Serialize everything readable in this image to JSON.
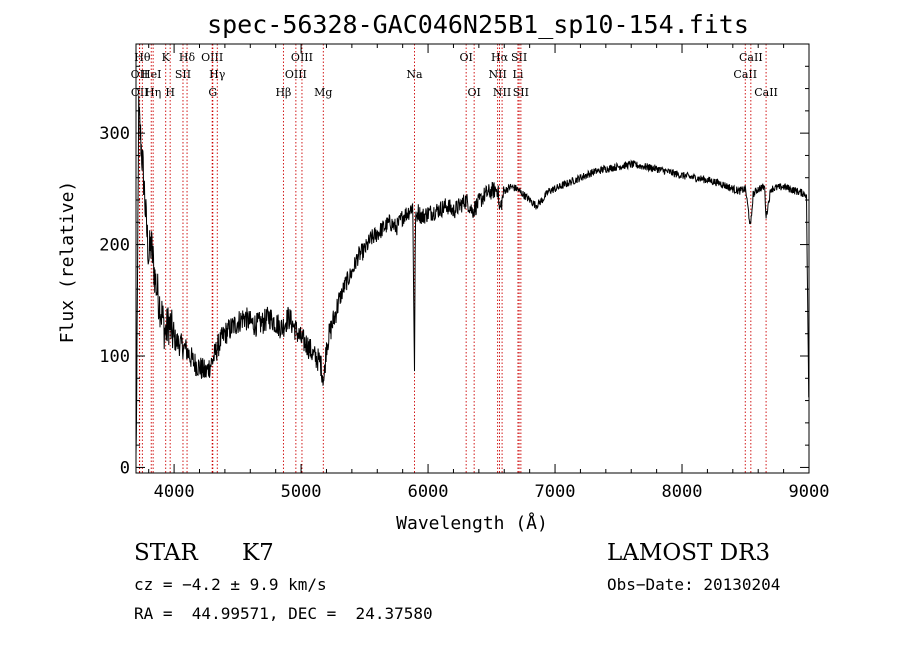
{
  "chart_data": {
    "type": "line",
    "title": "spec-56328-GAC046N25B1_sp10-154.fits",
    "xlabel": "Wavelength (Å)",
    "ylabel": "Flux (relative)",
    "xlim": [
      3700,
      9000
    ],
    "ylim": [
      -5,
      380
    ],
    "xticks": [
      4000,
      5000,
      6000,
      7000,
      8000,
      9000
    ],
    "yticks": [
      0,
      100,
      200,
      300
    ],
    "grid": false,
    "line_color": "#000000",
    "marker_color": "#cc0000",
    "series": [
      {
        "x": [
          3700,
          3710,
          3720,
          3740,
          3760,
          3780,
          3800,
          3820,
          3850,
          3880,
          3900,
          3930,
          3960,
          4000,
          4050,
          4100,
          4150,
          4200,
          4250,
          4300,
          4350,
          4400,
          4450,
          4500,
          4550,
          4600,
          4650,
          4700,
          4750,
          4800,
          4850,
          4900,
          4950,
          5000,
          5050,
          5100,
          5150,
          5180,
          5200,
          5250,
          5300,
          5350,
          5400,
          5450,
          5500,
          5550,
          5600,
          5650,
          5700,
          5750,
          5800,
          5850,
          5880,
          5893,
          5900,
          5920,
          5950,
          6000,
          6050,
          6100,
          6150,
          6200,
          6250,
          6300,
          6350,
          6400,
          6450,
          6500,
          6550,
          6563,
          6600,
          6650,
          6700,
          6750,
          6800,
          6850,
          6900,
          6950,
          7000,
          7100,
          7200,
          7300,
          7400,
          7500,
          7600,
          7700,
          7800,
          7900,
          8000,
          8100,
          8200,
          8300,
          8400,
          8450,
          8500,
          8540,
          8560,
          8600,
          8650,
          8662,
          8700,
          8800,
          8900,
          8980,
          9000
        ],
        "y": [
          5,
          120,
          320,
          290,
          260,
          220,
          190,
          200,
          170,
          150,
          140,
          120,
          130,
          115,
          110,
          105,
          95,
          90,
          85,
          95,
          110,
          120,
          125,
          130,
          135,
          130,
          128,
          130,
          135,
          130,
          125,
          135,
          125,
          115,
          110,
          100,
          95,
          78,
          110,
          130,
          150,
          165,
          175,
          190,
          195,
          205,
          210,
          215,
          220,
          215,
          225,
          230,
          235,
          85,
          220,
          230,
          225,
          228,
          230,
          232,
          235,
          230,
          235,
          240,
          230,
          238,
          245,
          248,
          250,
          230,
          248,
          252,
          250,
          245,
          240,
          235,
          240,
          248,
          250,
          255,
          260,
          265,
          268,
          270,
          272,
          270,
          268,
          265,
          262,
          260,
          258,
          255,
          250,
          248,
          250,
          215,
          245,
          250,
          252,
          225,
          250,
          252,
          248,
          245,
          40
        ]
      }
    ],
    "lines": [
      {
        "label": "OII",
        "x": 3727,
        "row": 1
      },
      {
        "label": "OII",
        "x": 3729,
        "row": 2
      },
      {
        "label": "Hθ",
        "x": 3750,
        "row": 0
      },
      {
        "label": "HeI",
        "x": 3820,
        "row": 1
      },
      {
        "label": "Hη",
        "x": 3835,
        "row": 2
      },
      {
        "label": "K",
        "x": 3934,
        "row": 0
      },
      {
        "label": "H",
        "x": 3969,
        "row": 2
      },
      {
        "label": "SII",
        "x": 4070,
        "row": 1
      },
      {
        "label": "Hδ",
        "x": 4102,
        "row": 0
      },
      {
        "label": "OIII",
        "x": 4300,
        "row": 0
      },
      {
        "label": "Hγ",
        "x": 4340,
        "row": 1
      },
      {
        "label": "G",
        "x": 4305,
        "row": 2
      },
      {
        "label": "Hβ",
        "x": 4861,
        "row": 2
      },
      {
        "label": "OIII",
        "x": 4959,
        "row": 1
      },
      {
        "label": "OIII",
        "x": 5007,
        "row": 0
      },
      {
        "label": "Mg",
        "x": 5175,
        "row": 2
      },
      {
        "label": "Na",
        "x": 5893,
        "row": 1
      },
      {
        "label": "OI",
        "x": 6300,
        "row": 0
      },
      {
        "label": "OI",
        "x": 6363,
        "row": 2
      },
      {
        "label": "NII",
        "x": 6548,
        "row": 1
      },
      {
        "label": "Hα",
        "x": 6563,
        "row": 0
      },
      {
        "label": "NII",
        "x": 6583,
        "row": 2
      },
      {
        "label": "SII",
        "x": 6717,
        "row": 0
      },
      {
        "label": "Li",
        "x": 6708,
        "row": 1
      },
      {
        "label": "SII",
        "x": 6731,
        "row": 2
      },
      {
        "label": "CaII",
        "x": 8498,
        "row": 1
      },
      {
        "label": "CaII",
        "x": 8542,
        "row": 0
      },
      {
        "label": "CaII",
        "x": 8662,
        "row": 2
      }
    ]
  },
  "info": {
    "object_class": "STAR",
    "subclass": "K7",
    "cz": "cz = −4.2 ± 9.9 km/s",
    "coords": "RA =  44.99571, DEC =  24.37580",
    "survey": "LAMOST DR3",
    "obs_date": "Obs−Date: 20130204"
  }
}
